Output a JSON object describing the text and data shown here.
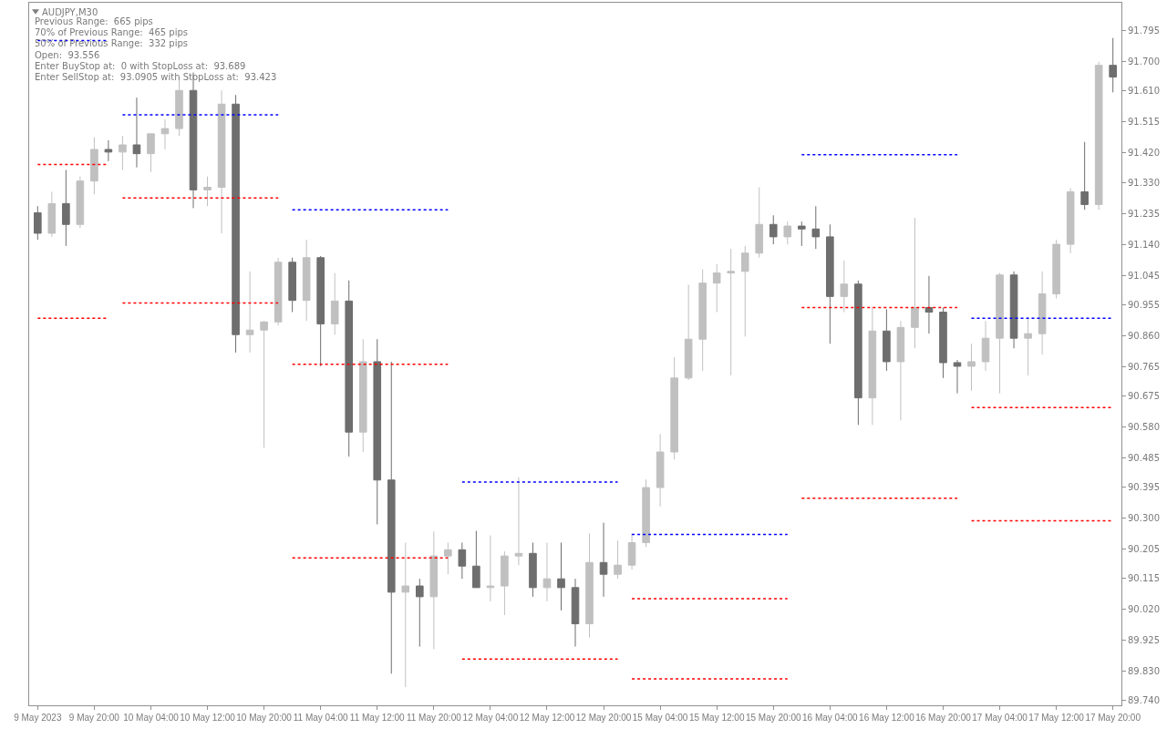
{
  "chart_data": {
    "type": "candlestick",
    "title": "AUDJPY,M30",
    "annotations": [
      "Previous Range:  665 pips",
      "70% of Previous Range:  465 pips",
      "50% of Previous Range:  332 pips",
      "Open:  93.556",
      "Enter BuyStop at:  0 with StopLoss at:  93.689",
      "Enter SellStop at:  93.0905 with StopLoss at:  93.423"
    ],
    "categories": [
      "9 May 2023",
      null,
      null,
      null,
      "9 May 20:00",
      null,
      null,
      null,
      "10 May 04:00",
      null,
      null,
      null,
      "10 May 12:00",
      null,
      null,
      null,
      "10 May 20:00",
      null,
      null,
      null,
      "11 May 04:00",
      null,
      null,
      null,
      "11 May 12:00",
      null,
      null,
      null,
      "11 May 20:00",
      null,
      null,
      null,
      "12 May 04:00",
      null,
      null,
      null,
      "12 May 12:00",
      null,
      null,
      null,
      "12 May 20:00",
      null,
      null,
      null,
      "15 May 04:00",
      null,
      null,
      null,
      "15 May 12:00",
      null,
      null,
      null,
      "15 May 20:00",
      null,
      null,
      null,
      "16 May 04:00",
      null,
      null,
      null,
      "16 May 12:00",
      null,
      null,
      null,
      "16 May 20:00",
      null,
      null,
      null,
      "17 May 04:00",
      null,
      null,
      null,
      "17 May 12:00",
      null,
      null,
      null,
      "17 May 20:00"
    ],
    "ohlc": [
      [
        91.237,
        91.257,
        91.154,
        91.174
      ],
      [
        91.174,
        91.301,
        91.163,
        91.265
      ],
      [
        91.265,
        91.368,
        91.135,
        91.201
      ],
      [
        91.201,
        91.348,
        91.19,
        91.334
      ],
      [
        91.334,
        91.468,
        91.293,
        91.431
      ],
      [
        91.431,
        91.459,
        91.395,
        91.423
      ],
      [
        91.423,
        91.473,
        91.368,
        91.445
      ],
      [
        91.445,
        91.59,
        91.376,
        91.418
      ],
      [
        91.418,
        91.479,
        91.362,
        91.479
      ],
      [
        91.479,
        91.523,
        91.431,
        91.495
      ],
      [
        91.495,
        91.653,
        91.473,
        91.612
      ],
      [
        91.612,
        91.667,
        91.251,
        91.307
      ],
      [
        91.307,
        91.348,
        91.257,
        91.315
      ],
      [
        91.315,
        91.612,
        91.174,
        91.57
      ],
      [
        91.57,
        91.598,
        90.808,
        90.863
      ],
      [
        90.863,
        91.057,
        90.808,
        90.877
      ],
      [
        90.877,
        90.905,
        90.516,
        90.902
      ],
      [
        90.902,
        91.099,
        90.891,
        91.085
      ],
      [
        91.085,
        91.099,
        90.932,
        90.968
      ],
      [
        90.968,
        91.154,
        90.905,
        91.099
      ],
      [
        91.099,
        91.104,
        90.766,
        90.896
      ],
      [
        90.896,
        91.052,
        90.863,
        90.966
      ],
      [
        90.966,
        91.029,
        90.489,
        90.564
      ],
      [
        90.564,
        90.849,
        90.503,
        90.78
      ],
      [
        90.78,
        90.849,
        90.281,
        90.417
      ],
      [
        90.417,
        90.78,
        89.823,
        90.073
      ],
      [
        90.073,
        90.225,
        89.782,
        90.092
      ],
      [
        90.092,
        90.114,
        89.906,
        90.059
      ],
      [
        90.059,
        90.259,
        89.898,
        90.184
      ],
      [
        90.184,
        90.225,
        90.128,
        90.203
      ],
      [
        90.203,
        90.225,
        90.114,
        90.153
      ],
      [
        90.153,
        90.261,
        90.087,
        90.087
      ],
      [
        90.087,
        90.247,
        90.045,
        90.092
      ],
      [
        90.092,
        90.198,
        90.003,
        90.184
      ],
      [
        90.184,
        90.425,
        90.156,
        90.192
      ],
      [
        90.192,
        90.225,
        90.059,
        90.087
      ],
      [
        90.087,
        90.225,
        90.045,
        90.114
      ],
      [
        90.114,
        90.225,
        90.017,
        90.087
      ],
      [
        90.087,
        90.114,
        89.906,
        89.976
      ],
      [
        89.976,
        90.253,
        89.934,
        90.164
      ],
      [
        90.164,
        90.286,
        90.059,
        90.128
      ],
      [
        90.128,
        90.231,
        90.114,
        90.156
      ],
      [
        90.156,
        90.253,
        90.142,
        90.225
      ],
      [
        90.225,
        90.419,
        90.211,
        90.394
      ],
      [
        90.394,
        90.558,
        90.336,
        90.503
      ],
      [
        90.503,
        90.794,
        90.48,
        90.73
      ],
      [
        90.73,
        91.016,
        90.724,
        90.849
      ],
      [
        90.849,
        91.063,
        90.752,
        91.021
      ],
      [
        91.021,
        91.079,
        90.932,
        91.052
      ],
      [
        91.052,
        91.126,
        90.738,
        91.057
      ],
      [
        91.057,
        91.135,
        90.857,
        91.113
      ],
      [
        91.113,
        91.315,
        91.099,
        91.201
      ],
      [
        91.201,
        91.229,
        91.14,
        91.163
      ],
      [
        91.163,
        91.21,
        91.14,
        91.196
      ],
      [
        91.196,
        91.21,
        91.135,
        91.187
      ],
      [
        91.187,
        91.257,
        91.126,
        91.163
      ],
      [
        91.163,
        91.201,
        90.835,
        90.98
      ],
      [
        90.98,
        91.09,
        90.932,
        91.018
      ],
      [
        91.018,
        91.029,
        90.586,
        90.669
      ],
      [
        90.669,
        90.946,
        90.586,
        90.874
      ],
      [
        90.874,
        90.941,
        90.752,
        90.78
      ],
      [
        90.78,
        90.905,
        90.6,
        90.885
      ],
      [
        90.885,
        91.221,
        90.821,
        90.946
      ],
      [
        90.946,
        91.043,
        90.866,
        90.932
      ],
      [
        90.932,
        90.946,
        90.73,
        90.777
      ],
      [
        90.777,
        90.785,
        90.683,
        90.766
      ],
      [
        90.766,
        90.835,
        90.691,
        90.78
      ],
      [
        90.78,
        90.905,
        90.752,
        90.852
      ],
      [
        90.852,
        91.052,
        90.683,
        91.046
      ],
      [
        91.046,
        91.057,
        90.821,
        90.852
      ],
      [
        90.852,
        90.918,
        90.738,
        90.866
      ],
      [
        90.866,
        91.057,
        90.802,
        90.988
      ],
      [
        90.988,
        91.154,
        90.974,
        91.14
      ],
      [
        91.14,
        91.312,
        91.113,
        91.301
      ],
      [
        91.301,
        91.454,
        91.246,
        91.262
      ],
      [
        91.262,
        91.7,
        91.246,
        91.689
      ],
      [
        91.689,
        91.773,
        91.606,
        91.653
      ]
    ],
    "colors": [
      "#6e6e6e",
      "#c0c0c0",
      "#6e6e6e",
      "#c0c0c0",
      "#c0c0c0",
      "#6e6e6e",
      "#c0c0c0",
      "#6e6e6e",
      "#c0c0c0",
      "#c0c0c0",
      "#c0c0c0",
      "#6e6e6e",
      "#c0c0c0",
      "#c0c0c0",
      "#6e6e6e",
      "#c0c0c0",
      "#c0c0c0",
      "#c0c0c0",
      "#6e6e6e",
      "#c0c0c0",
      "#6e6e6e",
      "#c0c0c0",
      "#6e6e6e",
      "#c0c0c0",
      "#6e6e6e",
      "#6e6e6e",
      "#c0c0c0",
      "#6e6e6e",
      "#c0c0c0",
      "#c0c0c0",
      "#6e6e6e",
      "#6e6e6e",
      "#c0c0c0",
      "#c0c0c0",
      "#c0c0c0",
      "#6e6e6e",
      "#c0c0c0",
      "#6e6e6e",
      "#6e6e6e",
      "#c0c0c0",
      "#6e6e6e",
      "#c0c0c0",
      "#c0c0c0",
      "#c0c0c0",
      "#c0c0c0",
      "#c0c0c0",
      "#c0c0c0",
      "#c0c0c0",
      "#c0c0c0",
      "#c0c0c0",
      "#c0c0c0",
      "#c0c0c0",
      "#6e6e6e",
      "#c0c0c0",
      "#6e6e6e",
      "#6e6e6e",
      "#6e6e6e",
      "#c0c0c0",
      "#6e6e6e",
      "#c0c0c0",
      "#6e6e6e",
      "#c0c0c0",
      "#c0c0c0",
      "#6e6e6e",
      "#6e6e6e",
      "#6e6e6e",
      "#c0c0c0",
      "#c0c0c0",
      "#c0c0c0",
      "#6e6e6e",
      "#c0c0c0",
      "#c0c0c0",
      "#c0c0c0",
      "#c0c0c0",
      "#6e6e6e",
      "#c0c0c0",
      "#6e6e6e"
    ],
    "series": [
      {
        "type": "line",
        "color": "#0000ff",
        "values": [
          91.765,
          91.765,
          91.765,
          91.765,
          91.765,
          91.765,
          91.537,
          91.537,
          91.537,
          91.537,
          91.537,
          91.537,
          91.537,
          91.537,
          91.537,
          91.537,
          91.537,
          91.537,
          91.246,
          91.246,
          91.246,
          91.246,
          91.246,
          91.246,
          91.246,
          91.246,
          91.246,
          91.246,
          91.246,
          91.246,
          90.411,
          90.411,
          90.411,
          90.411,
          90.411,
          90.411,
          90.411,
          90.411,
          90.411,
          90.411,
          90.411,
          90.411,
          90.25,
          90.25,
          90.25,
          90.25,
          90.25,
          90.25,
          90.25,
          90.25,
          90.25,
          90.25,
          90.25,
          90.25,
          91.415,
          91.415,
          91.415,
          91.415,
          91.415,
          91.415,
          91.415,
          91.415,
          91.415,
          91.415,
          91.415,
          91.415,
          90.913,
          90.913,
          90.913,
          90.913,
          90.913,
          90.913,
          90.913,
          90.913,
          90.913,
          90.913,
          90.913
        ]
      },
      {
        "type": "line",
        "color": "#ff0000",
        "values": [
          91.385,
          91.385,
          91.385,
          91.385,
          91.385,
          91.385,
          91.282,
          91.282,
          91.282,
          91.282,
          91.282,
          91.282,
          91.282,
          91.282,
          91.282,
          91.282,
          91.282,
          91.282,
          90.772,
          90.772,
          90.772,
          90.772,
          90.772,
          90.772,
          90.772,
          90.772,
          90.772,
          90.772,
          90.772,
          90.772,
          89.868,
          89.868,
          89.868,
          89.868,
          89.868,
          89.868,
          89.868,
          89.868,
          89.868,
          89.868,
          89.868,
          89.868,
          90.053,
          90.053,
          90.053,
          90.053,
          90.053,
          90.053,
          90.053,
          90.053,
          90.053,
          90.053,
          90.053,
          90.053,
          90.946,
          90.946,
          90.946,
          90.946,
          90.946,
          90.946,
          90.946,
          90.946,
          90.946,
          90.946,
          90.946,
          90.946,
          90.639,
          90.639,
          90.639,
          90.639,
          90.639,
          90.639,
          90.639,
          90.639,
          90.639,
          90.639,
          90.639
        ]
      },
      {
        "type": "line",
        "color": "#ff0000",
        "values": [
          90.913,
          90.913,
          90.913,
          90.913,
          90.913,
          90.913,
          90.96,
          90.96,
          90.96,
          90.96,
          90.96,
          90.96,
          90.96,
          90.96,
          90.96,
          90.96,
          90.96,
          90.96,
          90.178,
          90.178,
          90.178,
          90.178,
          90.178,
          90.178,
          90.178,
          90.178,
          90.178,
          90.178,
          90.178,
          90.178,
          null,
          null,
          null,
          null,
          null,
          null,
          null,
          null,
          null,
          null,
          null,
          null,
          89.807,
          89.807,
          89.807,
          89.807,
          89.807,
          89.807,
          89.807,
          89.807,
          89.807,
          89.807,
          89.807,
          89.807,
          90.361,
          90.361,
          90.361,
          90.361,
          90.361,
          90.361,
          90.361,
          90.361,
          90.361,
          90.361,
          90.361,
          90.361,
          90.292,
          90.292,
          90.292,
          90.292,
          90.292,
          90.292,
          90.292,
          90.292,
          90.292,
          90.292,
          90.292
        ]
      }
    ],
    "line_style": "dotted",
    "ylim": [
      89.726,
      91.881
    ],
    "yticks": [
      {
        "value": 89.74,
        "label": "89.740"
      },
      {
        "value": 89.83,
        "label": "89.830"
      },
      89.925,
      {
        "value": 90.02,
        "label": "90.020"
      },
      90.115,
      90.205,
      {
        "value": 90.3,
        "label": "90.300"
      },
      90.395,
      90.485,
      {
        "value": 90.58,
        "label": "90.580"
      },
      90.675,
      90.765,
      {
        "value": 90.86,
        "label": "90.860"
      },
      90.955,
      91.045,
      {
        "value": 91.14,
        "label": "91.140"
      },
      91.235,
      {
        "value": 91.33,
        "label": "91.330"
      },
      {
        "value": 91.42,
        "label": "91.420"
      },
      91.515,
      {
        "value": 91.61,
        "label": "91.610"
      },
      {
        "value": 91.7,
        "label": "91.700"
      },
      91.795
    ]
  }
}
